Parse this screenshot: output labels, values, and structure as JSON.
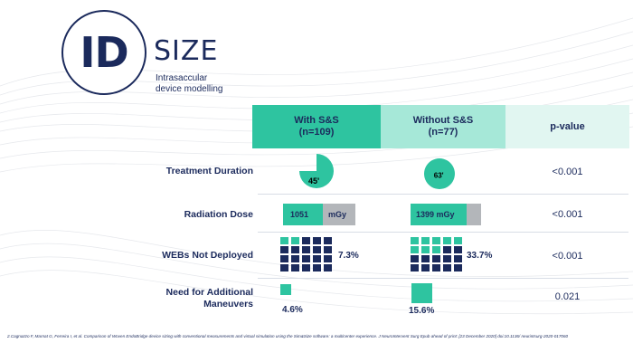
{
  "logo": {
    "id": "ID",
    "size": "SIZE",
    "tagline_1": "Intrasaccular",
    "tagline_2": "device modelling"
  },
  "headers": {
    "with_line1": "With S&S",
    "with_line2": "(n=109)",
    "without_line1": "Without S&S",
    "without_line2": "(n=77)",
    "pvalue": "p-value"
  },
  "rows": {
    "treatment": {
      "label": "Treatment Duration",
      "with": "45'",
      "without": "63'",
      "with_fraction": 0.75,
      "without_fraction": 1.0,
      "pvalue": "<0.001"
    },
    "radiation": {
      "label": "Radiation Dose",
      "with_value": "1051",
      "with_unit": "mGy",
      "without_value": "1399 mGy",
      "with_fraction": 0.55,
      "without_fraction": 0.8,
      "pvalue": "<0.001"
    },
    "webs": {
      "label": "WEBs Not Deployed",
      "with_pct": "7.3%",
      "without_pct": "33.7%",
      "with_teal_cells": 2,
      "without_teal_cells": 8,
      "total_cells": 20,
      "pvalue": "<0.001"
    },
    "maneuvers": {
      "label_line1": "Need for Additional",
      "label_line2": "Maneuvers",
      "with_pct": "4.6%",
      "without_pct": "15.6%",
      "pvalue": "0.021"
    }
  },
  "colors": {
    "teal": "#2ec4a0",
    "light_teal": "#a6e8d8",
    "pale_teal": "#e1f6f1",
    "navy": "#1b2a5c",
    "grey": "#b3b6ba"
  },
  "footnote": "2.Cagnazzo F, Marnat G, Ferreira I, et al. Comparison of Woven EndoBridge device sizing with conventional measurements and virtual simulation using the Sim&Size software: a multicenter experience. J NeuroIntervent Surg Epub ahead of print: [23 December 2020] doi:10.1136/ neurintsurg-2020-017060"
}
